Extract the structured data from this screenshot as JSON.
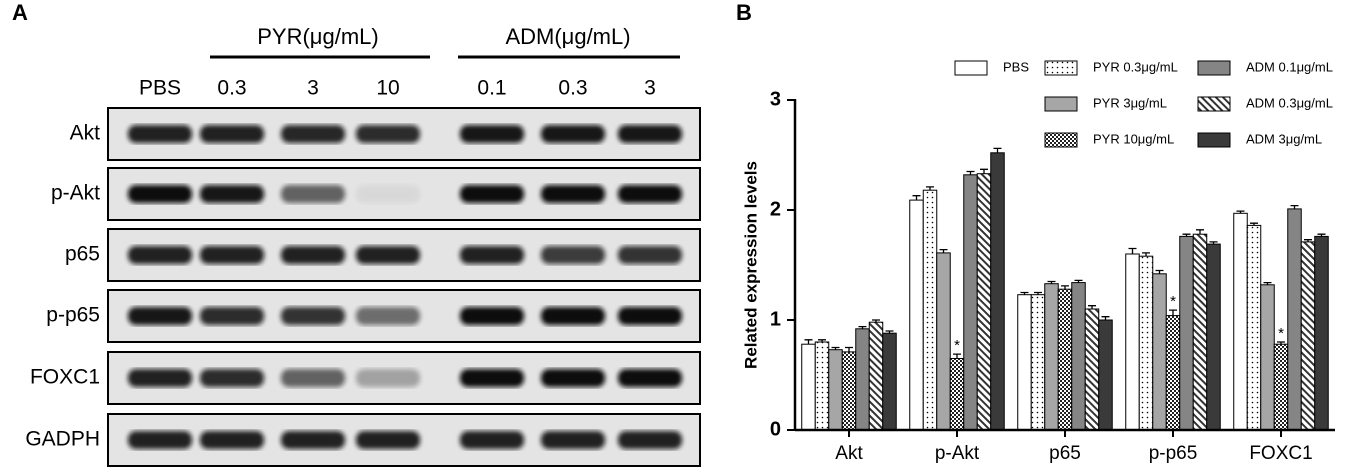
{
  "panel_a": {
    "label": "A",
    "groups": [
      {
        "label": "PYR(μg/mL)"
      },
      {
        "label": "ADM(μg/mL)"
      }
    ],
    "lanes": [
      "PBS",
      "0.3",
      "3",
      "10",
      "0.1",
      "0.3",
      "3"
    ],
    "rows": [
      "Akt",
      "p-Akt",
      "p65",
      "p-p65",
      "FOXC1",
      "GADPH"
    ]
  },
  "chart_data": {
    "type": "bar",
    "panel_label": "B",
    "y_label": "Related expression levels",
    "categories": [
      "Akt",
      "p-Akt",
      "p65",
      "p-p65",
      "FOXC1"
    ],
    "ylim": [
      0,
      3
    ],
    "yticks": [
      0,
      1,
      2,
      3
    ],
    "series": [
      {
        "name": "PBS",
        "color": "#ffffff",
        "values": [
          0.78,
          2.09,
          1.23,
          1.6,
          1.97
        ],
        "errors": [
          0.04,
          0.04,
          0.02,
          0.05,
          0.02
        ]
      },
      {
        "name": "PYR 0.3μg/mL",
        "color": "#ffffff",
        "pattern": "dots",
        "values": [
          0.8,
          2.18,
          1.23,
          1.58,
          1.86
        ],
        "errors": [
          0.02,
          0.03,
          0.02,
          0.03,
          0.02
        ]
      },
      {
        "name": "PYR 3μg/mL",
        "color": "#a6a6a6",
        "values": [
          0.73,
          1.61,
          1.33,
          1.42,
          1.32
        ],
        "errors": [
          0.02,
          0.03,
          0.02,
          0.03,
          0.02
        ]
      },
      {
        "name": "PYR 10μg/mL",
        "color": "#ffffff",
        "pattern": "checker",
        "values": [
          0.71,
          0.65,
          1.28,
          1.04,
          0.78
        ],
        "errors": [
          0.04,
          0.04,
          0.03,
          0.05,
          0.02
        ],
        "annotations": [
          null,
          "*",
          null,
          "*",
          "*"
        ]
      },
      {
        "name": "ADM 0.1μg/mL",
        "color": "#858585",
        "values": [
          0.92,
          2.32,
          1.34,
          1.76,
          2.01
        ],
        "errors": [
          0.02,
          0.03,
          0.02,
          0.02,
          0.03
        ]
      },
      {
        "name": "ADM 0.3μg/mL",
        "color": "#ffffff",
        "pattern": "diagonal",
        "values": [
          0.98,
          2.33,
          1.1,
          1.78,
          1.71
        ],
        "errors": [
          0.02,
          0.04,
          0.03,
          0.04,
          0.02
        ]
      },
      {
        "name": "ADM 3μg/mL",
        "color": "#3a3a3a",
        "values": [
          0.88,
          2.52,
          1.0,
          1.69,
          1.76
        ],
        "errors": [
          0.02,
          0.04,
          0.03,
          0.02,
          0.02
        ]
      }
    ]
  }
}
